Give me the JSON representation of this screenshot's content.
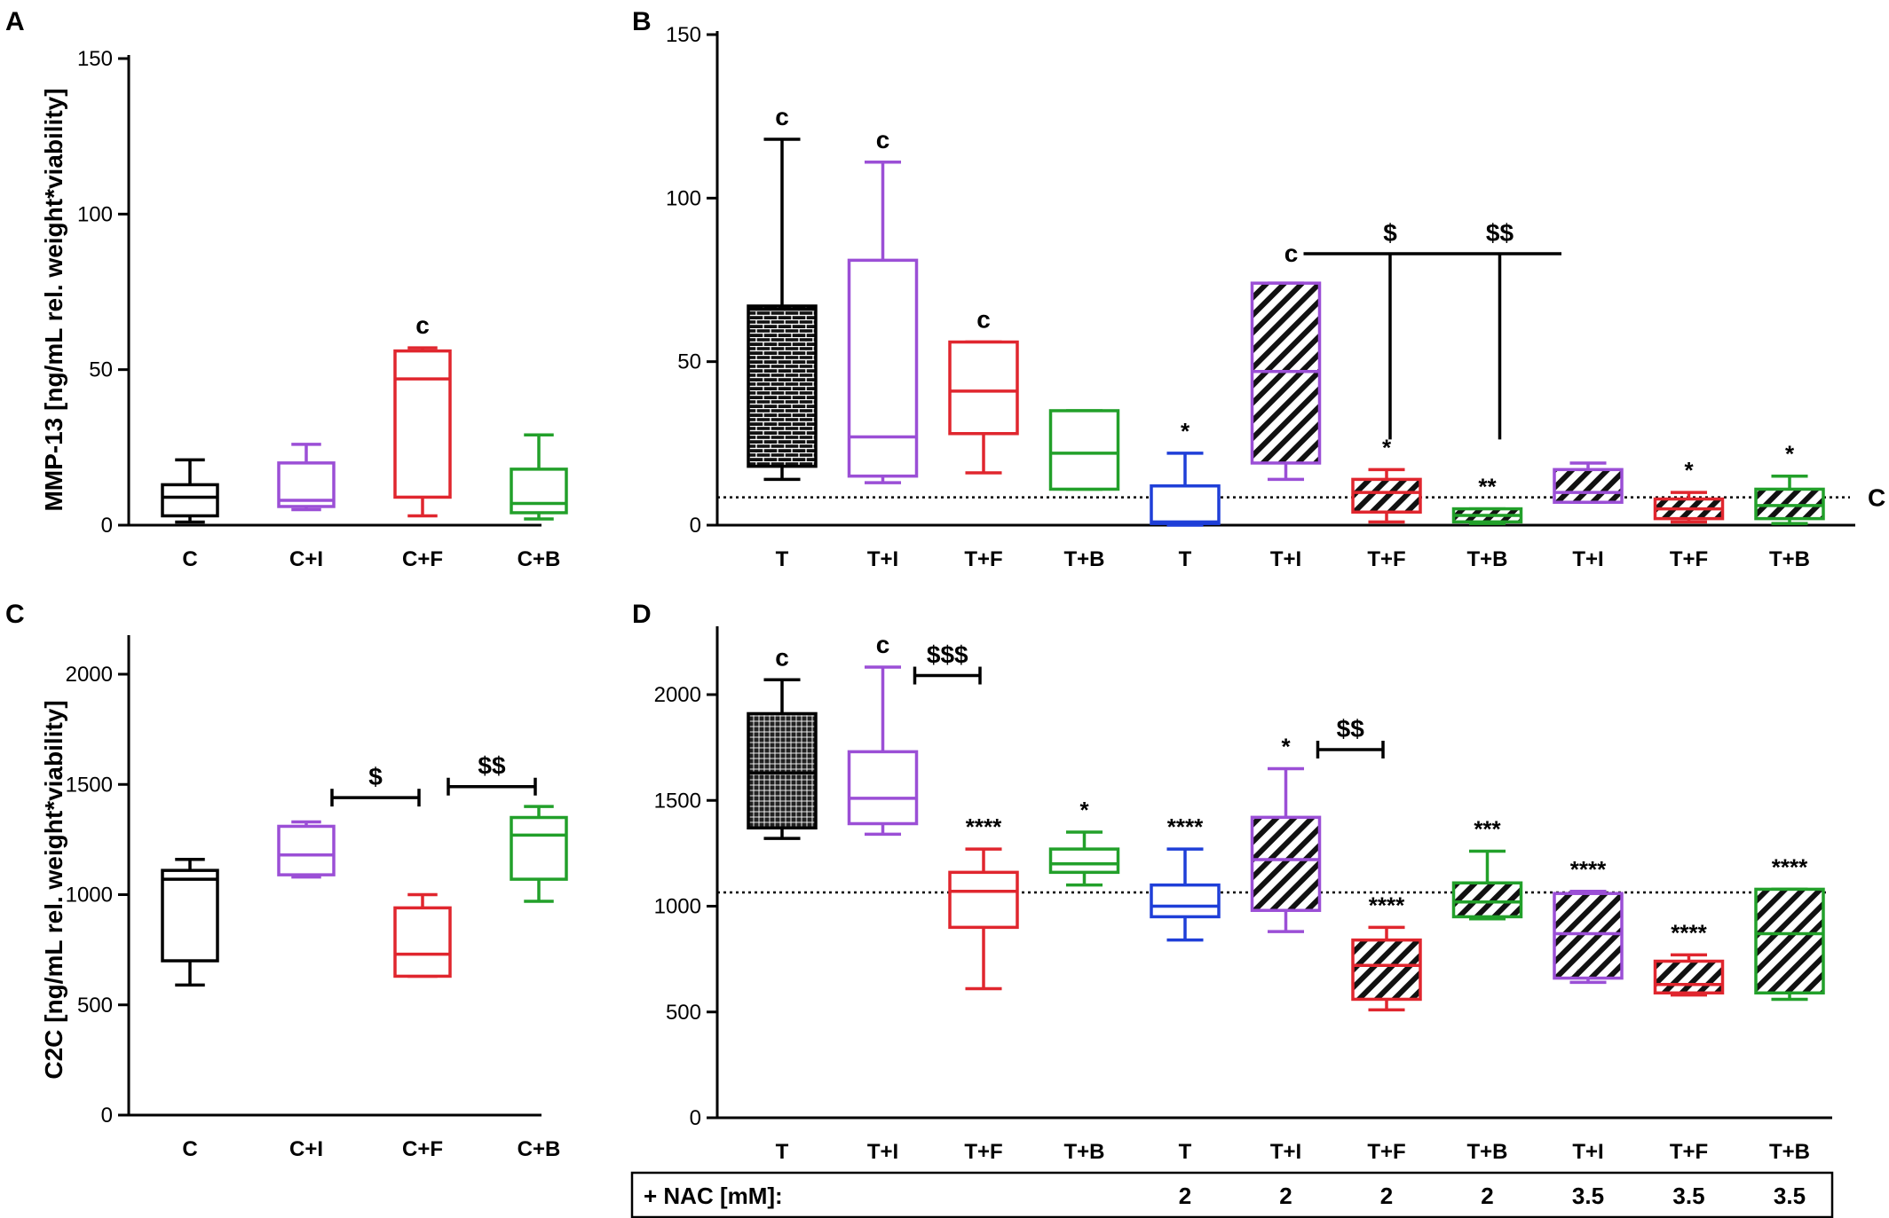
{
  "colors": {
    "T": "#000000",
    "C": "#000000",
    "I": "#9b4fd6",
    "F": "#e0262e",
    "B": "#22a02a",
    "N": "#1f3fd8"
  },
  "chart_data": [
    {
      "panel": "A",
      "type": "box",
      "ylabel": "MMP-13 [ng/mL rel. weight*viability]",
      "ylim": [
        0,
        150
      ],
      "yticks": [
        0,
        50,
        100,
        150
      ],
      "categories": [
        "C",
        "C+I",
        "C+F",
        "C+B"
      ],
      "boxes": [
        {
          "label": "C",
          "color": "C",
          "min": 1,
          "q1": 3,
          "median": 9,
          "q3": 13,
          "max": 21,
          "fill": "none",
          "ann": ""
        },
        {
          "label": "C+I",
          "color": "I",
          "min": 5,
          "q1": 6,
          "median": 8,
          "q3": 20,
          "max": 26,
          "fill": "none",
          "ann": ""
        },
        {
          "label": "C+F",
          "color": "F",
          "min": 3,
          "q1": 9,
          "median": 47,
          "q3": 56,
          "max": 57,
          "fill": "none",
          "ann": "c"
        },
        {
          "label": "C+B",
          "color": "B",
          "min": 2,
          "q1": 4,
          "median": 7,
          "q3": 18,
          "max": 29,
          "fill": "none",
          "ann": ""
        }
      ]
    },
    {
      "panel": "B",
      "type": "box",
      "ylabel": "",
      "ylim": [
        0,
        150
      ],
      "yticks": [
        0,
        50,
        100,
        150
      ],
      "categories": [
        "T",
        "T+I",
        "T+F",
        "T+B",
        "T",
        "T+I",
        "T+F",
        "T+B",
        "T+I",
        "T+F",
        "T+B"
      ],
      "reference_line": {
        "value": 8.5,
        "label": "C"
      },
      "boxes": [
        {
          "label": "T",
          "color": "T",
          "min": 14,
          "q1": 18,
          "median": 66,
          "q3": 67,
          "max": 118,
          "fill": "brick",
          "ann": "c"
        },
        {
          "label": "T+I",
          "color": "I",
          "min": 13,
          "q1": 15,
          "median": 27,
          "q3": 81,
          "max": 111,
          "fill": "none",
          "ann": "c"
        },
        {
          "label": "T+F",
          "color": "F",
          "min": 16,
          "q1": 28,
          "median": 41,
          "q3": 56,
          "max": 56,
          "fill": "none",
          "ann": "c"
        },
        {
          "label": "T+B",
          "color": "B",
          "min": 11,
          "q1": 11,
          "median": 22,
          "q3": 35,
          "max": 35,
          "fill": "none",
          "ann": ""
        },
        {
          "label": "T",
          "color": "N",
          "min": 0,
          "q1": 0.5,
          "median": 1,
          "q3": 12,
          "max": 22,
          "fill": "none",
          "ann": "*"
        },
        {
          "label": "T+I",
          "color": "I",
          "min": 14,
          "q1": 19,
          "median": 47,
          "q3": 74,
          "max": 74,
          "fill": "hatch",
          "ann": ""
        },
        {
          "label": "T+F",
          "color": "F",
          "min": 1,
          "q1": 4,
          "median": 10,
          "q3": 14,
          "max": 17,
          "fill": "hatch",
          "ann": "*"
        },
        {
          "label": "T+B",
          "color": "B",
          "min": 0.5,
          "q1": 1,
          "median": 3,
          "q3": 5,
          "max": 5,
          "fill": "hatch",
          "ann": "**"
        },
        {
          "label": "T+I",
          "color": "I",
          "min": 7,
          "q1": 7,
          "median": 10,
          "q3": 17,
          "max": 19,
          "fill": "hatch",
          "ann": ""
        },
        {
          "label": "T+F",
          "color": "F",
          "min": 1,
          "q1": 2,
          "median": 5,
          "q3": 8,
          "max": 10,
          "fill": "hatch",
          "ann": "*"
        },
        {
          "label": "T+B",
          "color": "B",
          "min": 0.5,
          "q1": 2,
          "median": 6,
          "q3": 11,
          "max": 15,
          "fill": "hatch",
          "ann": "*"
        }
      ],
      "brackets": [
        {
          "type": "bar",
          "from": 6,
          "to": 9,
          "value": 83,
          "label": "c",
          "drops": [
            {
              "at": 7,
              "to": 30,
              "label": "$"
            },
            {
              "at": 8,
              "to": 30,
              "label": "$$"
            }
          ]
        }
      ]
    },
    {
      "panel": "C",
      "type": "box",
      "ylabel": "C2C [ng/mL rel. weight*viability]",
      "ylim": [
        0,
        2200
      ],
      "yticks": [
        0,
        500,
        1000,
        1500,
        2000
      ],
      "categories": [
        "C",
        "C+I",
        "C+F",
        "C+B"
      ],
      "boxes": [
        {
          "label": "C",
          "color": "C",
          "min": 590,
          "q1": 700,
          "median": 1070,
          "q3": 1110,
          "max": 1160,
          "fill": "none",
          "ann": ""
        },
        {
          "label": "C+I",
          "color": "I",
          "min": 1080,
          "q1": 1090,
          "median": 1180,
          "q3": 1310,
          "max": 1330,
          "fill": "none",
          "ann": ""
        },
        {
          "label": "C+F",
          "color": "F",
          "min": 630,
          "q1": 630,
          "median": 730,
          "q3": 940,
          "max": 1000,
          "fill": "none",
          "ann": ""
        },
        {
          "label": "C+B",
          "color": "B",
          "min": 970,
          "q1": 1070,
          "median": 1270,
          "q3": 1350,
          "max": 1400,
          "fill": "none",
          "ann": ""
        }
      ],
      "brackets": [
        {
          "type": "hbar",
          "from": 2,
          "to": 3,
          "value": 1440,
          "label": "$"
        },
        {
          "type": "hbar",
          "from": 3,
          "to": 4,
          "value": 1490,
          "label": "$$"
        }
      ]
    },
    {
      "panel": "D",
      "type": "box",
      "ylabel": "",
      "ylim": [
        0,
        2300
      ],
      "yticks": [
        0,
        500,
        1000,
        1500,
        2000
      ],
      "categories": [
        "T",
        "T+I",
        "T+F",
        "T+B",
        "T",
        "T+I",
        "T+F",
        "T+B",
        "T+I",
        "T+F",
        "T+B"
      ],
      "reference_line": {
        "value": 1065,
        "label": ""
      },
      "boxes": [
        {
          "label": "T",
          "color": "T",
          "min": 1320,
          "q1": 1370,
          "median": 1630,
          "q3": 1910,
          "max": 2070,
          "fill": "grid",
          "ann": "c"
        },
        {
          "label": "T+I",
          "color": "I",
          "min": 1340,
          "q1": 1390,
          "median": 1510,
          "q3": 1730,
          "max": 2130,
          "fill": "none",
          "ann": "c"
        },
        {
          "label": "T+F",
          "color": "F",
          "min": 610,
          "q1": 900,
          "median": 1070,
          "q3": 1160,
          "max": 1270,
          "fill": "none",
          "ann": "****"
        },
        {
          "label": "T+B",
          "color": "B",
          "min": 1100,
          "q1": 1160,
          "median": 1200,
          "q3": 1270,
          "max": 1350,
          "fill": "none",
          "ann": "*"
        },
        {
          "label": "T",
          "color": "N",
          "min": 840,
          "q1": 950,
          "median": 1000,
          "q3": 1100,
          "max": 1270,
          "fill": "none",
          "ann": "****"
        },
        {
          "label": "T+I",
          "color": "I",
          "min": 880,
          "q1": 980,
          "median": 1220,
          "q3": 1420,
          "max": 1650,
          "fill": "hatch",
          "ann": "*"
        },
        {
          "label": "T+F",
          "color": "F",
          "min": 510,
          "q1": 560,
          "median": 720,
          "q3": 840,
          "max": 900,
          "fill": "hatch",
          "ann": "****"
        },
        {
          "label": "T+B",
          "color": "B",
          "min": 940,
          "q1": 950,
          "median": 1020,
          "q3": 1110,
          "max": 1260,
          "fill": "hatch",
          "ann": "***"
        },
        {
          "label": "T+I",
          "color": "I",
          "min": 640,
          "q1": 660,
          "median": 870,
          "q3": 1060,
          "max": 1070,
          "fill": "hatch",
          "ann": "****"
        },
        {
          "label": "T+F",
          "color": "F",
          "min": 580,
          "q1": 590,
          "median": 630,
          "q3": 740,
          "max": 770,
          "fill": "hatch",
          "ann": "****"
        },
        {
          "label": "T+B",
          "color": "B",
          "min": 560,
          "q1": 590,
          "median": 870,
          "q3": 1080,
          "max": 1080,
          "fill": "hatch",
          "ann": "****"
        }
      ],
      "brackets": [
        {
          "type": "hbar",
          "from": 2,
          "to": 3,
          "value": 2090,
          "label": "$$$"
        },
        {
          "type": "hbar",
          "from": 6,
          "to": 7,
          "value": 1740,
          "label": "$$"
        }
      ],
      "nac_row": {
        "label": "+ NAC [mM]:",
        "values": [
          "",
          "",
          "",
          "",
          "2",
          "2",
          "2",
          "2",
          "3.5",
          "3.5",
          "3.5"
        ]
      }
    }
  ]
}
